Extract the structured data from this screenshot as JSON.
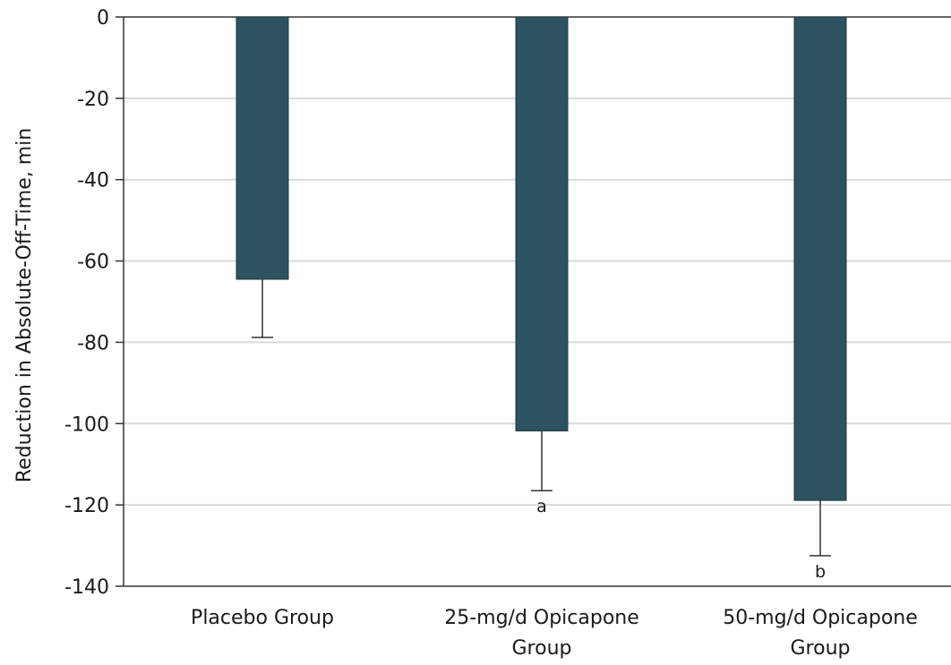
{
  "chart_data": {
    "type": "bar",
    "categories": [
      [
        "Placebo Group"
      ],
      [
        "25-mg/d Opicapone",
        "Group"
      ],
      [
        "50-mg/d Opicapone",
        "Group"
      ]
    ],
    "values": [
      -64.5,
      -101.8,
      -118.9
    ],
    "error_values": [
      -78.8,
      -116.5,
      -132.5
    ],
    "annotations": [
      "",
      "a",
      "b"
    ],
    "ylabel": "Reduction in Absolute-Off-Time, min",
    "ylim": [
      -140,
      0
    ],
    "yticks": [
      0,
      -20,
      -40,
      -60,
      -80,
      -100,
      -120,
      -140
    ],
    "grid": true,
    "bar_color": "#2d5260",
    "grid_color": "#d9d9d9",
    "axis_color": "#333333"
  }
}
